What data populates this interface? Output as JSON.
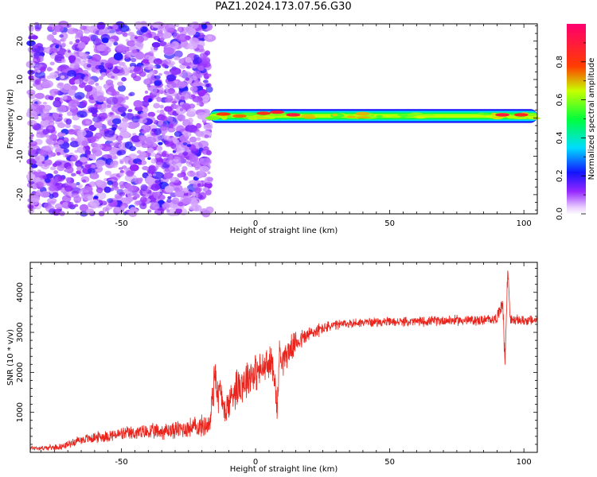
{
  "title": "PAZ1.2024.173.07.56.G30",
  "chart_data": [
    {
      "type": "heatmap",
      "xlabel": "Height of straight line (km)",
      "ylabel": "Frequency (Hz)",
      "xlim": [
        -84,
        105
      ],
      "ylim": [
        -25,
        24.5
      ],
      "xticks": [
        -50,
        0,
        50,
        100
      ],
      "xtick_labels": [
        "-50",
        "0",
        "50",
        "100"
      ],
      "yticks": [
        -20,
        -10,
        0,
        10,
        20
      ],
      "ytick_labels": [
        "-20",
        "-10",
        "0",
        "10",
        "20"
      ],
      "colorbar": {
        "label": "Normalized spectral amplitude",
        "range": [
          0,
          1
        ],
        "ticks": [
          0.0,
          0.2,
          0.4,
          0.6,
          0.8
        ],
        "tick_labels": [
          "0.0",
          "0.2",
          "0.4",
          "0.6",
          "0.8"
        ],
        "colormap": "gist_rainbow_r",
        "low_color": "#ffffff",
        "high_color": "#ff0066"
      },
      "noise_region": {
        "x": [
          -84,
          -17
        ],
        "y": [
          -25,
          24.5
        ],
        "amplitude_range": [
          0.0,
          0.25
        ]
      },
      "signal_band": {
        "x": [
          -17,
          105
        ],
        "center_freq": 0.5,
        "halfwidth_freq": 1.8,
        "peaks": [
          {
            "x": -12,
            "freq": 1.0,
            "amplitude": 0.78
          },
          {
            "x": -6,
            "freq": 0.5,
            "amplitude": 0.75
          },
          {
            "x": 3,
            "freq": 1.2,
            "amplitude": 0.82
          },
          {
            "x": 8,
            "freq": 1.5,
            "amplitude": 0.88
          },
          {
            "x": 14,
            "freq": 0.8,
            "amplitude": 0.9
          },
          {
            "x": 92,
            "freq": 0.8,
            "amplitude": 0.9
          },
          {
            "x": 99,
            "freq": 0.8,
            "amplitude": 0.85
          }
        ]
      },
      "grid": false,
      "legend": "none"
    },
    {
      "type": "line",
      "xlabel": "Height of straight line (km)",
      "ylabel": "SNR (10 * v/v)",
      "xlim": [
        -84,
        105
      ],
      "ylim": [
        0,
        4750
      ],
      "xticks": [
        -50,
        0,
        50,
        100
      ],
      "xtick_labels": [
        "-50",
        "0",
        "50",
        "100"
      ],
      "yticks": [
        1000,
        2000,
        3000,
        4000
      ],
      "ytick_labels": [
        "1000",
        "2000",
        "3000",
        "4000"
      ],
      "series": [
        {
          "color": "#e8241c",
          "x": [
            -84,
            -78,
            -72,
            -66,
            -60,
            -54,
            -48,
            -42,
            -36,
            -30,
            -24,
            -20,
            -17,
            -16,
            -15,
            -14,
            -13,
            -12,
            -10,
            -8,
            -6,
            -4,
            -2,
            0,
            2,
            4,
            6,
            7,
            8,
            9,
            10,
            12,
            15,
            20,
            25,
            30,
            35,
            40,
            45,
            50,
            55,
            60,
            65,
            70,
            75,
            80,
            85,
            90,
            92,
            93,
            94,
            95,
            96,
            100,
            105
          ],
          "y": [
            110,
            110,
            150,
            300,
            370,
            420,
            470,
            500,
            520,
            560,
            620,
            650,
            700,
            1500,
            2100,
            1300,
            1650,
            1000,
            1200,
            1600,
            1700,
            1800,
            1950,
            2000,
            2050,
            2150,
            2250,
            2050,
            1000,
            2600,
            2300,
            2500,
            2750,
            2950,
            3100,
            3180,
            3220,
            3250,
            3260,
            3260,
            3260,
            3270,
            3280,
            3300,
            3300,
            3300,
            3300,
            3350,
            3800,
            2300,
            4600,
            3300,
            3300,
            3300,
            3300
          ],
          "noise_amplitude": [
            70,
            70,
            90,
            130,
            160,
            180,
            200,
            220,
            240,
            260,
            300,
            320,
            340,
            700,
            700,
            500,
            500,
            400,
            500,
            600,
            600,
            600,
            600,
            550,
            500,
            500,
            500,
            500,
            400,
            500,
            450,
            400,
            320,
            250,
            180,
            150,
            140,
            130,
            130,
            130,
            130,
            140,
            140,
            150,
            150,
            150,
            150,
            150,
            300,
            300,
            300,
            150,
            150,
            150,
            150
          ]
        }
      ],
      "grid": false,
      "legend": "none"
    }
  ]
}
